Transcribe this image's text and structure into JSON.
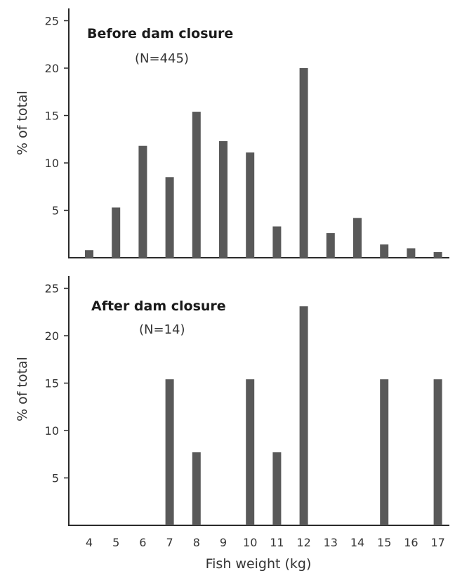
{
  "chart_data": [
    {
      "type": "bar",
      "title": "Before dam closure",
      "subtitle": "(N=445)",
      "xlabel": "",
      "ylabel": "% of total",
      "ylim": [
        0,
        27
      ],
      "yticks": [
        5,
        10,
        15,
        20,
        25
      ],
      "categories": [
        "4",
        "5",
        "6",
        "7",
        "8",
        "9",
        "10",
        "11",
        "12",
        "13",
        "14",
        "15",
        "16",
        "17"
      ],
      "values": [
        0.8,
        5.3,
        11.8,
        8.5,
        15.4,
        12.3,
        11.1,
        3.3,
        20.0,
        2.6,
        4.2,
        1.4,
        1.0,
        0.6
      ],
      "bar_color": "#595959",
      "grid": false
    },
    {
      "type": "bar",
      "title": "After dam closure",
      "subtitle": "(N=14)",
      "xlabel": "Fish weight (kg)",
      "ylabel": "% of total",
      "ylim": [
        0,
        27
      ],
      "yticks": [
        5,
        10,
        15,
        20,
        25
      ],
      "categories": [
        "4",
        "5",
        "6",
        "7",
        "8",
        "9",
        "10",
        "11",
        "12",
        "13",
        "14",
        "15",
        "16",
        "17"
      ],
      "values": [
        0,
        0,
        0,
        15.4,
        7.7,
        0,
        15.4,
        7.7,
        23.1,
        0,
        0,
        15.4,
        0,
        15.4
      ],
      "bar_color": "#595959",
      "grid": false
    }
  ]
}
